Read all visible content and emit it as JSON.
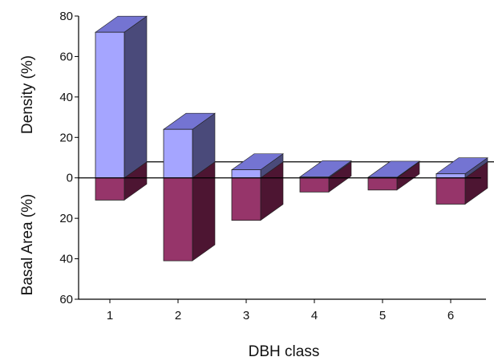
{
  "chart_data": {
    "type": "bar",
    "title": "",
    "xlabel": "DBH class",
    "ylabel_upper": "Density (%)",
    "ylabel_lower": "Basal Area (%)",
    "categories": [
      "1",
      "2",
      "3",
      "4",
      "5",
      "6"
    ],
    "series": [
      {
        "name": "",
        "direction": "up",
        "values": [
          72,
          24,
          4,
          0.5,
          0.3,
          2
        ]
      },
      {
        "name": "",
        "direction": "down",
        "values": [
          11,
          41,
          21,
          7,
          6,
          13
        ]
      }
    ],
    "y_ticks": [
      {
        "value": 80,
        "label": "80"
      },
      {
        "value": 60,
        "label": "60"
      },
      {
        "value": 40,
        "label": "40"
      },
      {
        "value": 20,
        "label": "20"
      },
      {
        "value": 0,
        "label": "0"
      },
      {
        "value": -20,
        "label": "20"
      },
      {
        "value": -40,
        "label": "40"
      },
      {
        "value": -60,
        "label": "60"
      }
    ],
    "ylim": [
      -60,
      80
    ],
    "grid": false,
    "three_d": true,
    "colors": {
      "up_front": "#a5a5ff",
      "up_top": "#7474d2",
      "up_side": "#4a4a7a",
      "down_front": "#96356a",
      "down_top": "#74254f",
      "down_side": "#4d1532",
      "axis": "#000000",
      "baseline": "#000000"
    }
  }
}
